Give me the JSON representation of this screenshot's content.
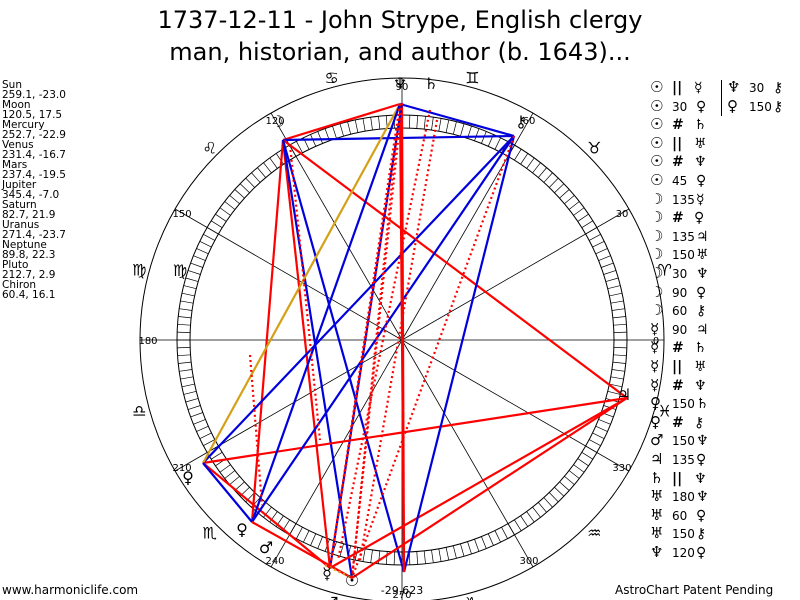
{
  "title_line1": "1737-12-11 - John Strype, English clergy",
  "title_line2": "man, historian, and author (b. 1643)...",
  "positions": [
    {
      "name": "Sun",
      "coords": "259.1, -23.0"
    },
    {
      "name": "Moon",
      "coords": "120.5, 17.5"
    },
    {
      "name": "Mercury",
      "coords": "252.7, -22.9"
    },
    {
      "name": "Venus",
      "coords": "231.4, -16.7"
    },
    {
      "name": "Mars",
      "coords": "237.4, -19.5"
    },
    {
      "name": "Jupiter",
      "coords": "345.4, -7.0"
    },
    {
      "name": "Saturn",
      "coords": "82.7, 21.9"
    },
    {
      "name": "Uranus",
      "coords": "271.4, -23.7"
    },
    {
      "name": "Neptune",
      "coords": "89.8, 22.3"
    },
    {
      "name": "Pluto",
      "coords": "212.7, 2.9"
    },
    {
      "name": "Chiron",
      "coords": "60.4, 16.1"
    }
  ],
  "degree_labels": [
    "0",
    "30",
    "60",
    "90",
    "120",
    "150",
    "180",
    "210",
    "240",
    "270",
    "300",
    "330"
  ],
  "bottom_coords": "-29,623",
  "aspects": [
    [
      "☉",
      "||",
      "☿"
    ],
    [
      "☉",
      "30",
      "♀"
    ],
    [
      "☉",
      "#",
      "♄"
    ],
    [
      "☉",
      "||",
      "♅"
    ],
    [
      "☉",
      "#",
      "♆"
    ],
    [
      "☉",
      "45",
      "♀"
    ],
    [
      "☽",
      "135",
      "☿"
    ],
    [
      "☽",
      "#",
      "♀"
    ],
    [
      "☽",
      "135",
      "♃"
    ],
    [
      "☽",
      "150",
      "♅"
    ],
    [
      "☽",
      "30",
      "♆"
    ],
    [
      "☽",
      "90",
      "♀"
    ],
    [
      "☽",
      "60",
      "⚷"
    ],
    [
      "☿",
      "90",
      "♃"
    ],
    [
      "☿",
      "#",
      "♄"
    ],
    [
      "☿",
      "||",
      "♅"
    ],
    [
      "☿",
      "#",
      "♆"
    ],
    [
      "♀",
      "150",
      "♄"
    ],
    [
      "♀",
      "#",
      "⚷"
    ],
    [
      "♂",
      "150",
      "♆"
    ],
    [
      "♃",
      "135",
      "♀"
    ],
    [
      "♄",
      "||",
      "♆"
    ],
    [
      "♅",
      "180",
      "♆"
    ],
    [
      "♅",
      "60",
      "♀"
    ],
    [
      "♅",
      "150",
      "⚷"
    ],
    [
      "♆",
      "120",
      "♀"
    ]
  ],
  "aspects_col2": [
    [
      "♆",
      "30",
      "⚷"
    ],
    [
      "♀",
      "150",
      "⚷"
    ]
  ],
  "footer_left": "www.harmoniclife.com",
  "footer_right": "AstroChart Patent Pending",
  "colors": {
    "red": "#ff0000",
    "blue": "#0000dd",
    "gold": "#d4a017",
    "ring": "#000000"
  }
}
